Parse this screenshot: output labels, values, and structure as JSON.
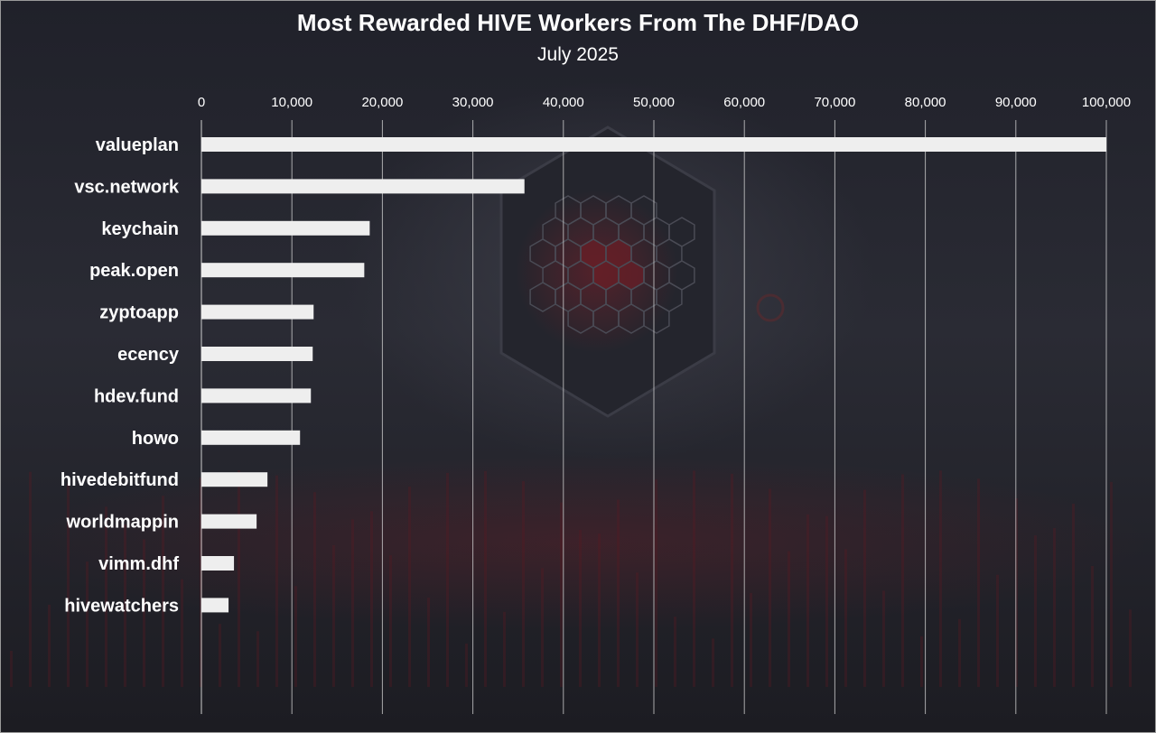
{
  "chart_data": {
    "type": "bar",
    "orientation": "horizontal",
    "title": "Most Rewarded HIVE Workers From The DHF/DAO",
    "subtitle": "July 2025",
    "xlabel": "",
    "ylabel": "",
    "xlim": [
      0,
      100000
    ],
    "x_ticks": [
      "0",
      "10,000",
      "20,000",
      "30,000",
      "40,000",
      "50,000",
      "60,000",
      "70,000",
      "80,000",
      "90,000",
      "100,000"
    ],
    "x_tick_values": [
      0,
      10000,
      20000,
      30000,
      40000,
      50000,
      60000,
      70000,
      80000,
      90000,
      100000
    ],
    "x_axis_position": "top",
    "grid": true,
    "legend": "none",
    "categories": [
      "valueplan",
      "vsc.network",
      "keychain",
      "peak.open",
      "zyptoapp",
      "ecency",
      "hdev.fund",
      "howo",
      "hivedebitfund",
      "worldmappin",
      "vimm.dhf",
      "hivewatchers"
    ],
    "values": [
      100000,
      35700,
      18600,
      18000,
      12400,
      12300,
      12100,
      10900,
      7300,
      6100,
      3600,
      3000
    ],
    "colors": {
      "bar": "#eeeeee",
      "grid": "#d8d8d8",
      "text": "#ffffff",
      "background": "#22232b"
    }
  }
}
